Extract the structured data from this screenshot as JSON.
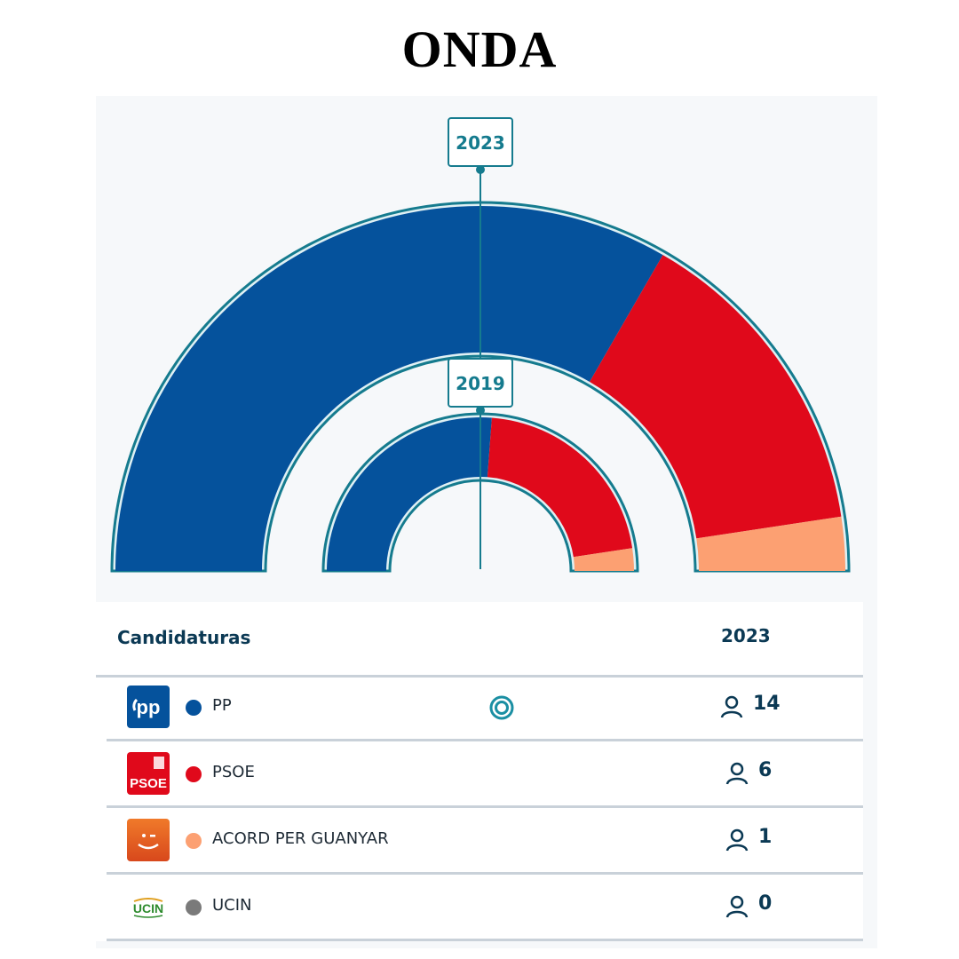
{
  "title": "ONDA",
  "chart_data": {
    "type": "semicircle-donut",
    "rings": [
      {
        "year": "2023",
        "label": "2023",
        "values": [
          14,
          6,
          1,
          0
        ]
      },
      {
        "year": "2019",
        "label": "2019",
        "values": [
          11,
          9,
          1,
          0
        ]
      }
    ],
    "parties": [
      "PP",
      "PSOE",
      "ACORD PER GUANYAR",
      "UCIN"
    ],
    "colors": [
      "#05529c",
      "#e0091b",
      "#fca072",
      "#a89bd0"
    ]
  },
  "table": {
    "header_name": "Candidaturas",
    "header_year": "2023",
    "rows": [
      {
        "party": "PP",
        "color": "#05529c",
        "seats": "14",
        "majority": true,
        "logo": "pp-logo",
        "logo_text": "pp"
      },
      {
        "party": "PSOE",
        "color": "#e0091b",
        "seats": "6",
        "majority": false,
        "logo": "psoe-logo",
        "logo_text": "PSOE"
      },
      {
        "party": "ACORD PER GUANYAR",
        "color": "#fca072",
        "seats": "1",
        "majority": false,
        "logo": "acord-logo",
        "logo_text": ""
      },
      {
        "party": "UCIN",
        "color": "#7a7a7a",
        "seats": "0",
        "majority": false,
        "logo": "ucin-logo",
        "logo_text": "UCIN"
      }
    ]
  },
  "icons": {
    "seats": "person-icon",
    "majority": "majority-ring-icon"
  }
}
